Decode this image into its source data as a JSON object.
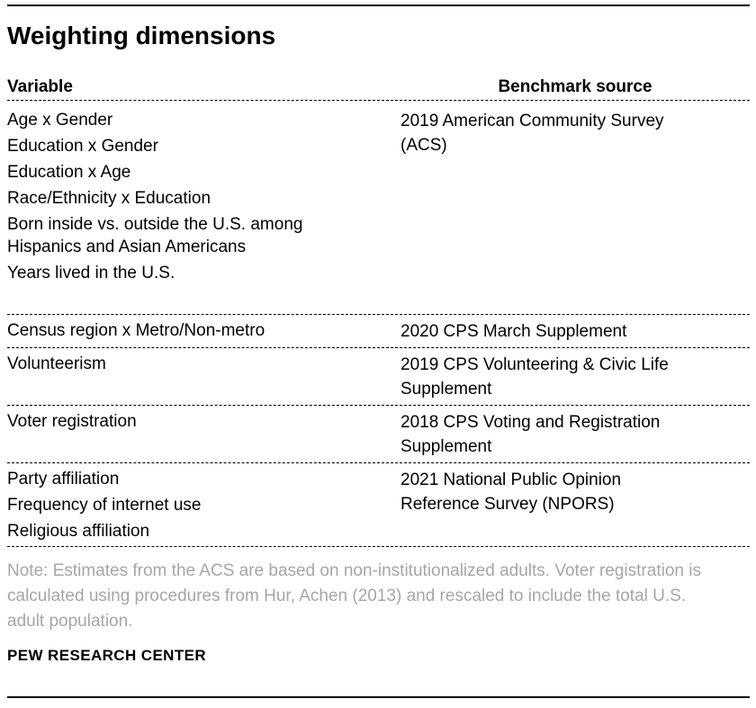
{
  "chart_data": {
    "type": "table",
    "title": "Weighting dimensions",
    "columns": [
      "Variable",
      "Benchmark source"
    ],
    "rows": [
      {
        "variable_lines": [
          [
            "Age x Gender"
          ],
          [
            "Education x Gender"
          ],
          [
            "Education x Age"
          ],
          [
            "Race/Ethnicity x Education"
          ],
          [
            "Born inside vs. outside the U.S. among",
            "Hispanics and Asian Americans"
          ],
          [
            "Years lived in the U.S."
          ]
        ],
        "benchmark_lines": [
          "2019 American Community Survey",
          "(ACS)"
        ]
      },
      {
        "variable_lines": [
          [
            "Census region x Metro/Non-metro"
          ]
        ],
        "benchmark_lines": [
          "2020 CPS March Supplement"
        ]
      },
      {
        "variable_lines": [
          [
            "Volunteerism"
          ]
        ],
        "benchmark_lines": [
          "2019 CPS Volunteering & Civic Life",
          "Supplement"
        ]
      },
      {
        "variable_lines": [
          [
            "Voter registration"
          ]
        ],
        "benchmark_lines": [
          "2018 CPS Voting and Registration",
          "Supplement"
        ]
      },
      {
        "variable_lines": [
          [
            "Party affiliation"
          ],
          [
            "Frequency of internet use"
          ],
          [
            "Religious affiliation"
          ]
        ],
        "benchmark_lines": [
          "2021 National Public Opinion",
          "Reference Survey (NPORS)"
        ]
      }
    ],
    "note_lines": [
      "Note: Estimates from the ACS are based on non-institutionalized adults. Voter registration is",
      "calculated using procedures from Hur, Achen (2013) and rescaled to include the total U.S.",
      "adult population."
    ],
    "source": "PEW RESEARCH CENTER",
    "layout": {
      "grid": "off",
      "legend": "none"
    },
    "colors": {
      "text": "#000000",
      "note_text": "#a6a6a6",
      "rule": "#000000",
      "background": "#ffffff"
    }
  }
}
